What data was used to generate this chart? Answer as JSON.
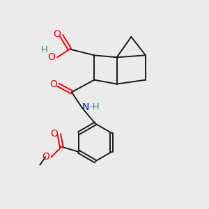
{
  "bg_color": "#ebebeb",
  "atom_colors": {
    "O": "#ff0000",
    "N": "#0000cd",
    "C": "#1a1a1a",
    "H": "#2e8b8b"
  },
  "bond_color": "#1a1a1a",
  "bond_width": 1.4
}
